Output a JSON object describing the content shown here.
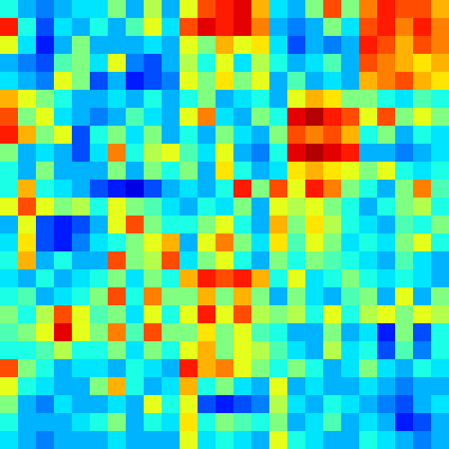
{
  "chart_data": {
    "type": "heatmap",
    "tick_labels": false,
    "color_range": [
      0,
      1
    ],
    "panels": [
      [
        [
          [
            0.4,
            0.3,
            0.25,
            0.3,
            0.35
          ],
          [
            0.85,
            0.4,
            0.2,
            0.35,
            0.3
          ],
          [
            0.6,
            0.35,
            0.15,
            0.3,
            0.5
          ],
          [
            0.3,
            0.25,
            0.2,
            0.45,
            0.5
          ],
          [
            0.35,
            0.3,
            0.25,
            0.6,
            0.5
          ]
        ],
        [
          [
            0.35,
            0.5,
            0.3,
            0.55,
            0.3
          ],
          [
            0.4,
            0.3,
            0.45,
            0.6,
            0.35
          ],
          [
            0.3,
            0.3,
            0.3,
            0.35,
            0.3
          ],
          [
            0.35,
            0.6,
            0.25,
            0.2,
            0.3
          ],
          [
            0.2,
            0.3,
            0.15,
            0.2,
            0.25
          ]
        ],
        [
          [
            0.6,
            0.8,
            0.85,
            0.9,
            0.7
          ],
          [
            0.8,
            0.9,
            0.85,
            0.9,
            0.75
          ],
          [
            0.6,
            0.5,
            0.7,
            0.6,
            0.65
          ],
          [
            0.55,
            0.4,
            0.6,
            0.35,
            0.55
          ],
          [
            0.6,
            0.5,
            0.65,
            0.5,
            0.6
          ]
        ],
        [
          [
            0.35,
            0.3,
            0.5,
            0.8,
            0.5
          ],
          [
            0.3,
            0.25,
            0.3,
            0.5,
            0.35
          ],
          [
            0.35,
            0.2,
            0.3,
            0.25,
            0.3
          ],
          [
            0.4,
            0.3,
            0.35,
            0.45,
            0.3
          ],
          [
            0.3,
            0.45,
            0.3,
            0.35,
            0.3
          ]
        ],
        [
          [
            0.75,
            0.85,
            0.8,
            0.8,
            0.7
          ],
          [
            0.8,
            0.85,
            0.75,
            0.85,
            0.75
          ],
          [
            0.85,
            0.8,
            0.7,
            0.8,
            0.75
          ],
          [
            0.8,
            0.75,
            0.7,
            0.65,
            0.7
          ],
          [
            0.7,
            0.75,
            0.8,
            0.7,
            0.65
          ]
        ]
      ],
      [
        [
          [
            0.7,
            0.6,
            0.5,
            0.4,
            0.3
          ],
          [
            0.8,
            0.5,
            0.6,
            0.35,
            0.3
          ],
          [
            0.85,
            0.7,
            0.5,
            0.6,
            0.2
          ],
          [
            0.5,
            0.3,
            0.35,
            0.3,
            0.2
          ],
          [
            0.4,
            0.3,
            0.5,
            0.3,
            0.3
          ]
        ],
        [
          [
            0.3,
            0.35,
            0.3,
            0.4,
            0.3
          ],
          [
            0.25,
            0.3,
            0.45,
            0.35,
            0.3
          ],
          [
            0.4,
            0.5,
            0.35,
            0.5,
            0.3
          ],
          [
            0.35,
            0.75,
            0.4,
            0.55,
            0.6
          ],
          [
            0.3,
            0.5,
            0.3,
            0.5,
            0.4
          ]
        ],
        [
          [
            0.4,
            0.5,
            0.3,
            0.35,
            0.4
          ],
          [
            0.6,
            0.75,
            0.35,
            0.3,
            0.5
          ],
          [
            0.4,
            0.3,
            0.5,
            0.35,
            0.3
          ],
          [
            0.45,
            0.35,
            0.6,
            0.3,
            0.25
          ],
          [
            0.5,
            0.3,
            0.65,
            0.4,
            0.3
          ]
        ],
        [
          [
            0.3,
            0.6,
            0.7,
            0.65,
            0.5
          ],
          [
            0.4,
            0.9,
            0.95,
            0.85,
            0.8
          ],
          [
            0.5,
            0.8,
            0.75,
            0.8,
            0.7
          ],
          [
            0.4,
            0.9,
            0.95,
            0.9,
            0.85
          ],
          [
            0.35,
            0.65,
            0.7,
            0.65,
            0.6
          ]
        ],
        [
          [
            0.5,
            0.4,
            0.35,
            0.45,
            0.4
          ],
          [
            0.6,
            0.8,
            0.5,
            0.6,
            0.5
          ],
          [
            0.4,
            0.5,
            0.3,
            0.4,
            0.35
          ],
          [
            0.3,
            0.3,
            0.25,
            0.3,
            0.35
          ],
          [
            0.5,
            0.6,
            0.4,
            0.35,
            0.4
          ]
        ]
      ],
      [
        [
          [
            0.4,
            0.7,
            0.4,
            0.35,
            0.3
          ],
          [
            0.6,
            0.8,
            0.6,
            0.5,
            0.55
          ],
          [
            0.3,
            0.6,
            0.2,
            0.15,
            0.2
          ],
          [
            0.35,
            0.65,
            0.2,
            0.15,
            0.25
          ],
          [
            0.4,
            0.7,
            0.3,
            0.4,
            0.3
          ]
        ],
        [
          [
            0.2,
            0.15,
            0.1,
            0.2,
            0.3
          ],
          [
            0.4,
            0.6,
            0.5,
            0.45,
            0.35
          ],
          [
            0.3,
            0.6,
            0.8,
            0.5,
            0.4
          ],
          [
            0.35,
            0.4,
            0.5,
            0.6,
            0.7
          ],
          [
            0.3,
            0.8,
            0.5,
            0.55,
            0.8
          ]
        ],
        [
          [
            0.35,
            0.3,
            0.4,
            0.85,
            0.5
          ],
          [
            0.3,
            0.4,
            0.35,
            0.5,
            0.3
          ],
          [
            0.4,
            0.5,
            0.6,
            0.4,
            0.3
          ],
          [
            0.3,
            0.6,
            0.75,
            0.5,
            0.35
          ],
          [
            0.35,
            0.5,
            0.6,
            0.4,
            0.3
          ]
        ],
        [
          [
            0.8,
            0.6,
            0.85,
            0.75,
            0.5
          ],
          [
            0.6,
            0.55,
            0.6,
            0.5,
            0.4
          ],
          [
            0.7,
            0.5,
            0.65,
            0.55,
            0.4
          ],
          [
            0.65,
            0.45,
            0.6,
            0.5,
            0.35
          ],
          [
            0.5,
            0.4,
            0.5,
            0.45,
            0.4
          ]
        ],
        [
          [
            0.4,
            0.3,
            0.5,
            0.75,
            0.45
          ],
          [
            0.3,
            0.4,
            0.5,
            0.55,
            0.4
          ],
          [
            0.35,
            0.3,
            0.45,
            0.4,
            0.5
          ],
          [
            0.4,
            0.35,
            0.5,
            0.6,
            0.4
          ],
          [
            0.35,
            0.3,
            0.45,
            0.35,
            0.3
          ]
        ]
      ],
      [
        [
          [
            0.35,
            0.3,
            0.4,
            0.3,
            0.35
          ],
          [
            0.4,
            0.45,
            0.3,
            0.35,
            0.4
          ],
          [
            0.5,
            0.4,
            0.55,
            0.8,
            0.6
          ],
          [
            0.45,
            0.5,
            0.6,
            0.9,
            0.6
          ],
          [
            0.4,
            0.4,
            0.45,
            0.55,
            0.4
          ]
        ],
        [
          [
            0.4,
            0.5,
            0.35,
            0.5,
            0.4
          ],
          [
            0.5,
            0.8,
            0.4,
            0.75,
            0.5
          ],
          [
            0.45,
            0.5,
            0.35,
            0.6,
            0.4
          ],
          [
            0.5,
            0.75,
            0.45,
            0.8,
            0.5
          ],
          [
            0.4,
            0.5,
            0.35,
            0.5,
            0.4
          ]
        ],
        [
          [
            0.7,
            0.85,
            0.8,
            0.85,
            0.7
          ],
          [
            0.5,
            0.7,
            0.5,
            0.7,
            0.5
          ],
          [
            0.6,
            0.85,
            0.6,
            0.8,
            0.55
          ],
          [
            0.5,
            0.65,
            0.5,
            0.6,
            0.45
          ],
          [
            0.6,
            0.7,
            0.5,
            0.6,
            0.55
          ]
        ],
        [
          [
            0.4,
            0.6,
            0.35,
            0.4,
            0.5
          ],
          [
            0.3,
            0.5,
            0.35,
            0.3,
            0.45
          ],
          [
            0.5,
            0.55,
            0.4,
            0.6,
            0.4
          ],
          [
            0.4,
            0.3,
            0.3,
            0.5,
            0.3
          ],
          [
            0.45,
            0.35,
            0.3,
            0.55,
            0.35
          ]
        ],
        [
          [
            0.4,
            0.35,
            0.4,
            0.35,
            0.3
          ],
          [
            0.5,
            0.3,
            0.6,
            0.3,
            0.5
          ],
          [
            0.55,
            0.6,
            0.5,
            0.6,
            0.55
          ],
          [
            0.35,
            0.15,
            0.5,
            0.2,
            0.4
          ],
          [
            0.4,
            0.2,
            0.45,
            0.25,
            0.4
          ]
        ]
      ],
      [
        [
          [
            0.8,
            0.5,
            0.4,
            0.3,
            0.35
          ],
          [
            0.6,
            0.4,
            0.35,
            0.3,
            0.3
          ],
          [
            0.5,
            0.3,
            0.25,
            0.35,
            0.3
          ],
          [
            0.4,
            0.3,
            0.3,
            0.3,
            0.35
          ],
          [
            0.35,
            0.3,
            0.25,
            0.3,
            0.3
          ]
        ],
        [
          [
            0.35,
            0.3,
            0.4,
            0.35,
            0.3
          ],
          [
            0.5,
            0.7,
            0.4,
            0.3,
            0.35
          ],
          [
            0.3,
            0.35,
            0.3,
            0.6,
            0.4
          ],
          [
            0.4,
            0.5,
            0.3,
            0.4,
            0.35
          ],
          [
            0.3,
            0.35,
            0.3,
            0.3,
            0.3
          ]
        ],
        [
          [
            0.85,
            0.7,
            0.75,
            0.6,
            0.5
          ],
          [
            0.7,
            0.4,
            0.5,
            0.35,
            0.3
          ],
          [
            0.6,
            0.2,
            0.15,
            0.2,
            0.25
          ],
          [
            0.65,
            0.4,
            0.5,
            0.45,
            0.4
          ],
          [
            0.6,
            0.35,
            0.4,
            0.35,
            0.3
          ]
        ],
        [
          [
            0.4,
            0.5,
            0.4,
            0.3,
            0.35
          ],
          [
            0.6,
            0.3,
            0.35,
            0.3,
            0.3
          ],
          [
            0.55,
            0.35,
            0.3,
            0.4,
            0.35
          ],
          [
            0.5,
            0.3,
            0.35,
            0.45,
            0.3
          ],
          [
            0.6,
            0.4,
            0.35,
            0.3,
            0.3
          ]
        ],
        [
          [
            0.5,
            0.35,
            0.3,
            0.4,
            0.35
          ],
          [
            0.35,
            0.3,
            0.25,
            0.3,
            0.3
          ],
          [
            0.3,
            0.25,
            0.2,
            0.3,
            0.35
          ],
          [
            0.35,
            0.3,
            0.15,
            0.2,
            0.3
          ],
          [
            0.4,
            0.35,
            0.3,
            0.25,
            0.3
          ]
        ]
      ]
    ]
  }
}
